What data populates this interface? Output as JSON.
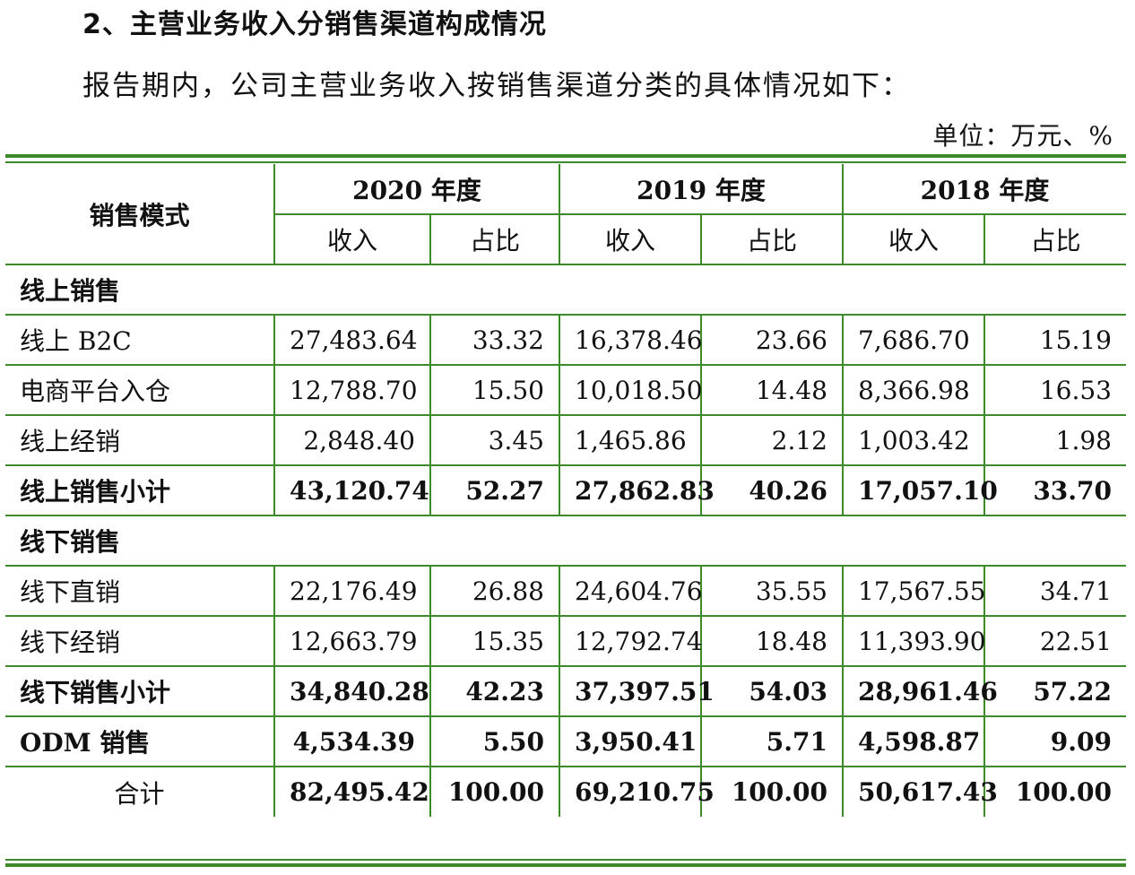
{
  "heading": "2、主营业务收入分销售渠道构成情况",
  "intro": "报告期内，公司主营业务收入按销售渠道分类的具体情况如下：",
  "unit": "单位：万元、%",
  "table": {
    "mode_header": "销售模式",
    "years": [
      "2020 年度",
      "2019 年度",
      "2018 年度"
    ],
    "sub_headers": [
      "收入",
      "占比",
      "收入",
      "占比",
      "收入",
      "占比"
    ],
    "sections": {
      "online": "线上销售",
      "offline": "线下销售"
    },
    "rows": {
      "b2c": {
        "label": "线上 B2C",
        "values": [
          "27,483.64",
          "33.32",
          "16,378.46",
          "23.66",
          "7,686.70",
          "15.19"
        ]
      },
      "ecom": {
        "label": "电商平台入仓",
        "values": [
          "12,788.70",
          "15.50",
          "10,018.50",
          "14.48",
          "8,366.98",
          "16.53"
        ]
      },
      "online_dist": {
        "label": "线上经销",
        "values": [
          "2,848.40",
          "3.45",
          "1,465.86",
          "2.12",
          "1,003.42",
          "1.98"
        ]
      },
      "online_sub": {
        "label": "线上销售小计",
        "values": [
          "43,120.74",
          "52.27",
          "27,862.83",
          "40.26",
          "17,057.10",
          "33.70"
        ]
      },
      "offline_direct": {
        "label": "线下直销",
        "values": [
          "22,176.49",
          "26.88",
          "24,604.76",
          "35.55",
          "17,567.55",
          "34.71"
        ]
      },
      "offline_dist": {
        "label": "线下经销",
        "values": [
          "12,663.79",
          "15.35",
          "12,792.74",
          "18.48",
          "11,393.90",
          "22.51"
        ]
      },
      "offline_sub": {
        "label": "线下销售小计",
        "values": [
          "34,840.28",
          "42.23",
          "37,397.51",
          "54.03",
          "28,961.46",
          "57.22"
        ]
      },
      "odm": {
        "label": "ODM 销售",
        "values": [
          "4,534.39",
          "5.50",
          "3,950.41",
          "5.71",
          "4,598.87",
          "9.09"
        ]
      },
      "total": {
        "label": "合计",
        "values": [
          "82,495.42",
          "100.00",
          "69,210.75",
          "100.00",
          "50,617.43",
          "100.00"
        ]
      }
    }
  }
}
